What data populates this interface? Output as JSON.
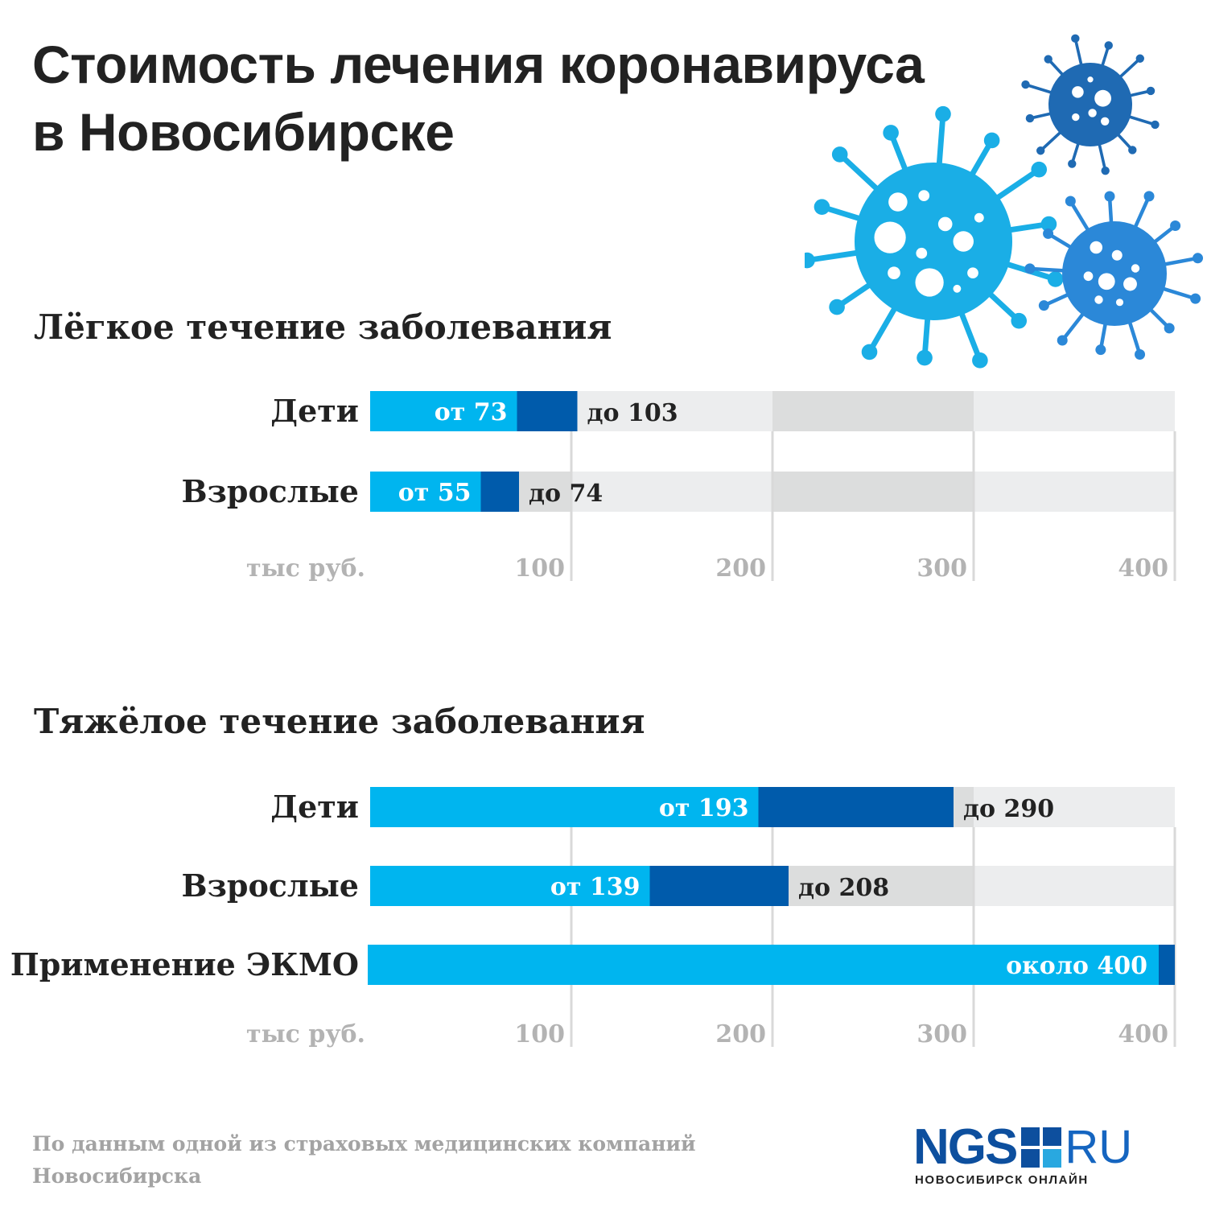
{
  "title": {
    "line1": "Стоимость лечения коронавируса",
    "line2": "в Новосибирске"
  },
  "colors": {
    "from_bar": "#00b5ef",
    "to_bar": "#005bab",
    "track_gray": "#dcdddd",
    "track_light": "#ecedee",
    "grid": "#d9d9d9",
    "virus_light": "#1aaee6",
    "virus_mid": "#2b88d8",
    "virus_dark": "#1f6ab3",
    "logo_blue": "#0d4f9e"
  },
  "decoration": {
    "icon": "coronavirus-icon",
    "count": 3
  },
  "chart_data": [
    {
      "type": "bar",
      "orientation": "horizontal",
      "stacked_range": true,
      "title": "Лёгкое течение заболевания",
      "unit_label": "тыс руб.",
      "xlim": [
        0,
        400
      ],
      "ticks": [
        100,
        200,
        300,
        400
      ],
      "tick_labels": [
        "100",
        "200",
        "300",
        "400"
      ],
      "grid": true,
      "categories": [
        "Дети",
        "Взрослые"
      ],
      "series": [
        {
          "values": [
            73,
            55
          ],
          "labels": [
            "от 73",
            "от 55"
          ]
        },
        {
          "values": [
            103,
            74
          ],
          "labels": [
            "до 103",
            "до 74"
          ]
        }
      ]
    },
    {
      "type": "bar",
      "orientation": "horizontal",
      "stacked_range": true,
      "title": "Тяжёлое течение заболевания",
      "unit_label": "тыс руб.",
      "xlim": [
        0,
        400
      ],
      "ticks": [
        100,
        200,
        300,
        400
      ],
      "tick_labels": [
        "100",
        "200",
        "300",
        "400"
      ],
      "grid": true,
      "categories": [
        "Дети",
        "Взрослые",
        "Применение ЭКМО"
      ],
      "series": [
        {
          "values": [
            193,
            139,
            400
          ],
          "labels": [
            "от 193",
            "от 139",
            "около 400"
          ]
        },
        {
          "values": [
            290,
            208,
            null
          ],
          "labels": [
            "до 290",
            "до 208",
            ""
          ]
        }
      ]
    }
  ],
  "source": {
    "line1": "По данным одной из страховых медицинских компаний",
    "line2": "Новосибирска"
  },
  "logo": {
    "main": "NGS",
    "suffix": "RU",
    "tagline": "НОВОСИБИРСК ОНЛАЙН"
  }
}
